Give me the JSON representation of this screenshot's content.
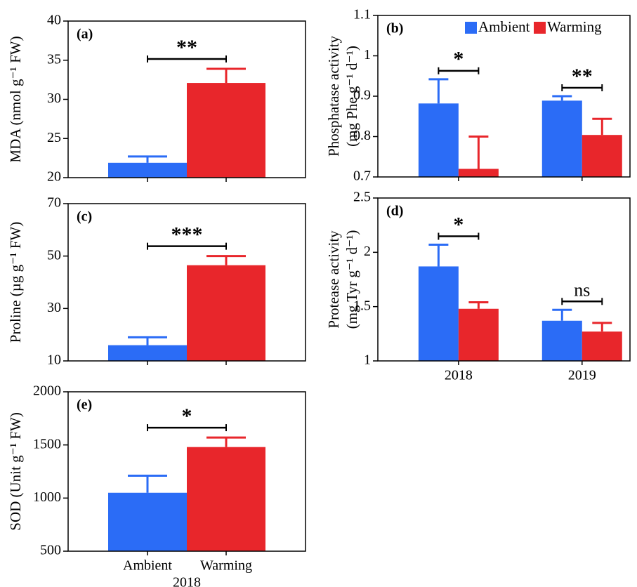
{
  "chart_data": [
    {
      "type": "bar",
      "panel_label": "(a)",
      "ylabel": [
        "MDA (nmol g⁻¹ FW)"
      ],
      "categories": [
        null,
        null
      ],
      "values": [
        21.9,
        32.1
      ],
      "errors": [
        0.8,
        1.8
      ],
      "colors": [
        "#2b6cf6",
        "#e8262b"
      ],
      "ylim": [
        20,
        40
      ],
      "yticks": [
        20,
        25,
        30,
        35,
        40
      ],
      "annotations": [
        {
          "text": "**"
        }
      ]
    },
    {
      "type": "bar",
      "panel_label": "(b)",
      "ylabel": [
        "Phosphatase activity",
        "(mg Phe g⁻¹ d⁻¹)"
      ],
      "categories": [
        null,
        null
      ],
      "series": [
        {
          "name": "Ambient",
          "color": "#2b6cf6",
          "values": [
            0.882,
            0.889
          ],
          "errors": [
            0.06,
            0.011
          ]
        },
        {
          "name": "Warming",
          "color": "#e8262b",
          "values": [
            0.72,
            0.804
          ],
          "errors": [
            0.08,
            0.04
          ]
        }
      ],
      "legend": "upper right",
      "ylim": [
        0.7,
        1.1
      ],
      "yticks": [
        0.7,
        0.8,
        0.9,
        1.0,
        1.1
      ],
      "annotations": [
        {
          "text": "*"
        },
        {
          "text": "**"
        }
      ]
    },
    {
      "type": "bar",
      "panel_label": "(c)",
      "ylabel": [
        "Proline (µg g⁻¹ FW)"
      ],
      "categories": [
        null,
        null
      ],
      "values": [
        16,
        46.5
      ],
      "errors": [
        3,
        3.5
      ],
      "colors": [
        "#2b6cf6",
        "#e8262b"
      ],
      "ylim": [
        10,
        70
      ],
      "yticks": [
        10,
        30,
        50,
        70
      ],
      "annotations": [
        {
          "text": "***"
        }
      ]
    },
    {
      "type": "bar",
      "panel_label": "(d)",
      "ylabel": [
        "Protease activity",
        "(mg Tyr g⁻¹ d⁻¹)"
      ],
      "categories": [
        "2018",
        "2019"
      ],
      "series": [
        {
          "name": null,
          "color": "#2b6cf6",
          "values": [
            1.87,
            1.37
          ],
          "errors": [
            0.2,
            0.1
          ]
        },
        {
          "name": null,
          "color": "#e8262b",
          "values": [
            1.48,
            1.27
          ],
          "errors": [
            0.06,
            0.08
          ]
        }
      ],
      "ylim": [
        1.0,
        2.5
      ],
      "yticks": [
        1.0,
        1.5,
        2.0,
        2.5
      ],
      "annotations": [
        {
          "text": "*"
        },
        {
          "text": "ns"
        }
      ]
    },
    {
      "type": "bar",
      "panel_label": "(e)",
      "ylabel": [
        "SOD (Unit g⁻¹ FW)"
      ],
      "categories": [
        "Ambient",
        "Warming"
      ],
      "xlabel": "2018",
      "values": [
        1050,
        1480
      ],
      "errors": [
        160,
        90
      ],
      "colors": [
        "#2b6cf6",
        "#e8262b"
      ],
      "ylim": [
        500,
        2000
      ],
      "yticks": [
        500,
        1000,
        1500,
        2000
      ],
      "annotations": [
        {
          "text": "*"
        }
      ]
    }
  ]
}
